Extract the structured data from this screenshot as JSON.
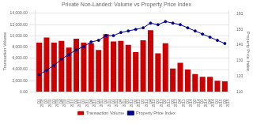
{
  "chart_data": {
    "type": "bar",
    "title": "Private Non-Landed: Volume vs Property Price Index",
    "ylabel": "Transaction Volume",
    "y2label": "Property Price Index",
    "categories": [
      "Q1\n2008",
      "Q2\n2009",
      "Q3\n2009",
      "Q4\n2009",
      "Q1\n2010",
      "Q2\n2010",
      "Q3\n2010",
      "Q4\n2010",
      "Q1\n2011",
      "Q2\n2011",
      "Q3\n2011",
      "Q4\n2011",
      "Q1\n2012",
      "Q2\n2012",
      "Q3\n2012",
      "Q4\n2012",
      "Q1\n2013",
      "Q2\n2013",
      "Q3\n2013",
      "Q4\n2013",
      "Q1\n2014",
      "Q2\n2014",
      "Q3\n2014",
      "Q4\n2014",
      "Q1\n2015",
      "Q2\n2015"
    ],
    "series": [
      {
        "name": "Transaction Volume",
        "type": "bar",
        "color": "#cc0000",
        "values": [
          8800,
          9700,
          8800,
          9100,
          7900,
          9500,
          8800,
          8700,
          7500,
          10300,
          9000,
          9100,
          8400,
          7100,
          9200,
          11000,
          6900,
          8700,
          4200,
          5200,
          4000,
          3200,
          2700,
          2700,
          2000,
          1900
        ]
      },
      {
        "name": "Property Price Index",
        "type": "line",
        "color": "#00008B",
        "marker": "circle",
        "axis": "y2",
        "values": [
          121,
          124,
          127,
          131,
          134,
          137,
          139,
          142,
          143,
          146,
          146,
          148,
          149,
          150,
          151,
          154,
          153,
          155,
          154,
          153,
          151,
          149,
          147,
          145,
          143,
          141
        ]
      }
    ],
    "ylim": [
      0,
      14500
    ],
    "yticks": [
      {
        "value": 0,
        "label": "0.00"
      },
      {
        "value": 2000,
        "label": "2,000.00"
      },
      {
        "value": 4000,
        "label": "4,000.00"
      },
      {
        "value": 6000,
        "label": "6,000.00"
      },
      {
        "value": 8000,
        "label": "8,000.00"
      },
      {
        "value": 10000,
        "label": "10,000.00"
      },
      {
        "value": 12000,
        "label": "12,000.00"
      },
      {
        "value": 14000,
        "label": "14,000.00"
      }
    ],
    "y2lim": [
      110,
      162
    ],
    "y2ticks": [
      110,
      120,
      130,
      140,
      150,
      160
    ],
    "grid": true,
    "legend": "bottom"
  }
}
